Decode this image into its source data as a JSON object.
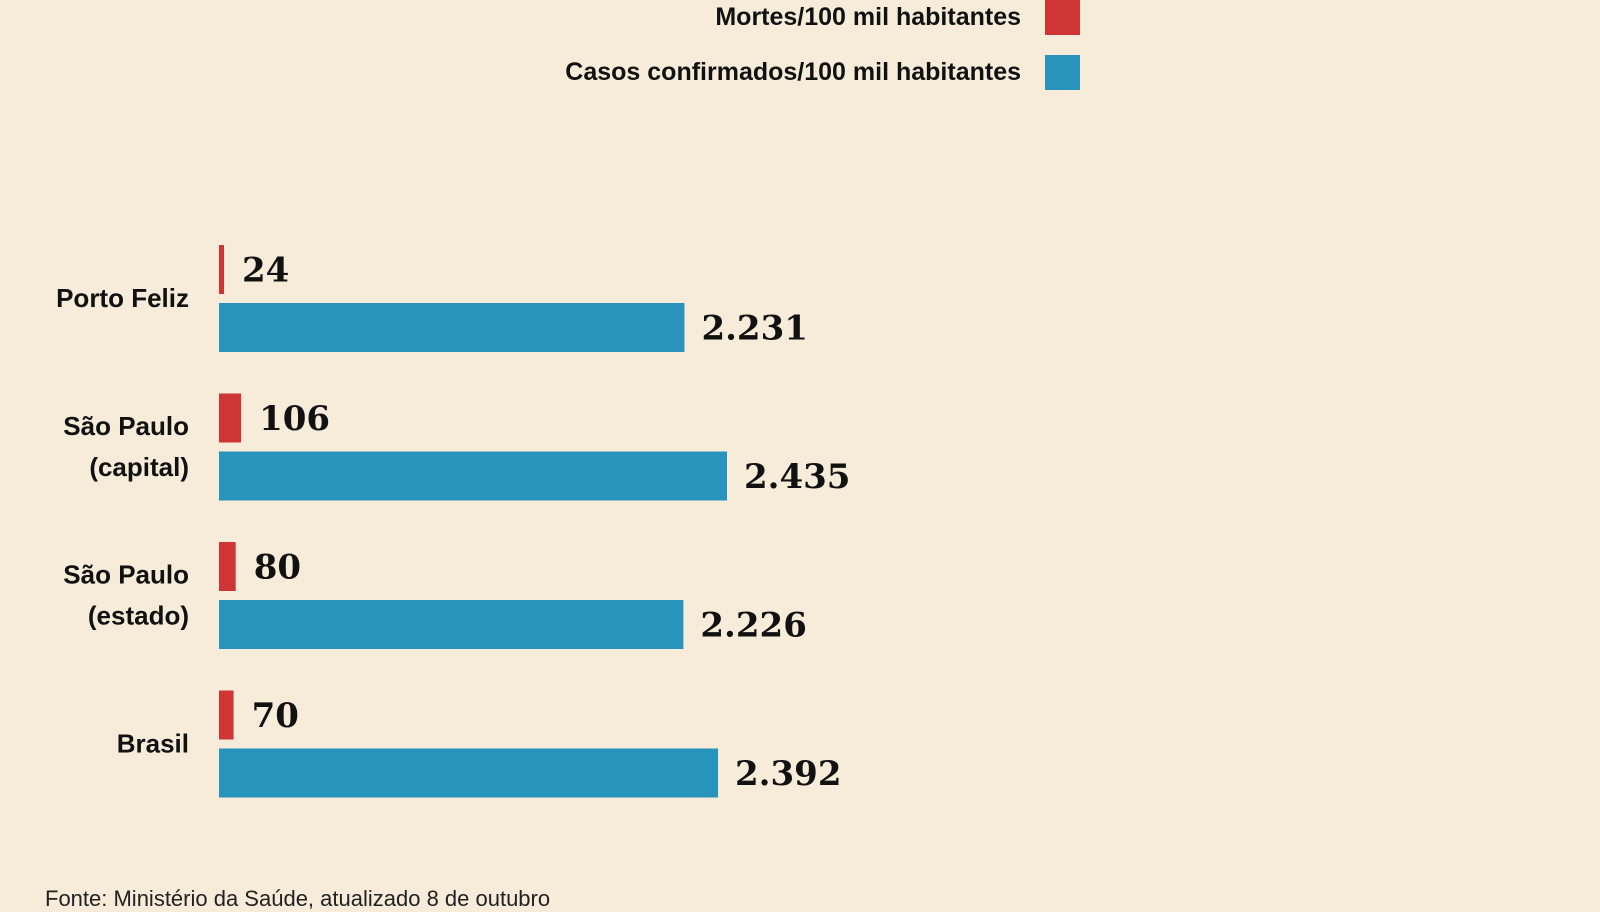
{
  "colors": {
    "background": "#f6ecd9",
    "deaths": "#d03535",
    "cases": "#2894bc"
  },
  "legend": {
    "deaths_label": "Mortes/100 mil habitantes",
    "cases_label": "Casos confirmados/100 mil habitantes"
  },
  "source": "Fonte: Ministério da Saúde, atualizado 8 de outubro",
  "chart_data": {
    "type": "bar",
    "orientation": "horizontal",
    "categories": [
      [
        "Porto Feliz"
      ],
      [
        "São Paulo",
        "(capital)"
      ],
      [
        "São Paulo",
        "(estado)"
      ],
      [
        "Brasil"
      ]
    ],
    "series": [
      {
        "name": "Mortes/100 mil habitantes",
        "values": [
          24,
          106,
          80,
          70
        ],
        "labels": [
          "24",
          "106",
          "80",
          "70"
        ]
      },
      {
        "name": "Casos confirmados/100 mil habitantes",
        "values": [
          2231,
          2435,
          2226,
          2392
        ],
        "labels": [
          "2.231",
          "2.435",
          "2.226",
          "2.392"
        ]
      }
    ],
    "legend_position": "top",
    "grid": false,
    "xlim": [
      0,
      2435
    ]
  }
}
